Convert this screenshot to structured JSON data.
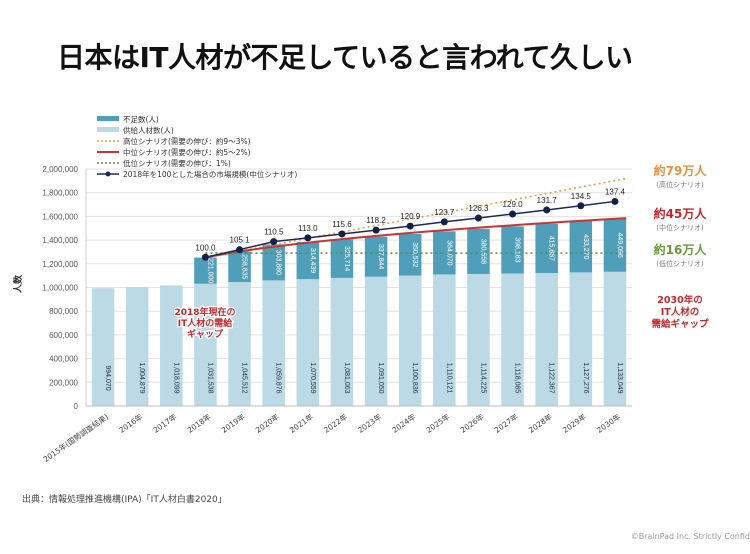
{
  "slide": {
    "title": "日本はIT人材が不足していると言われて久しい",
    "source": "出典：情報処理推進機構(IPA)「IT人材白書2020」",
    "copyright": "©BrainPad Inc. Strictly Confid"
  },
  "chart_data": {
    "type": "bar",
    "stacked": true,
    "ylabel": "人数",
    "ylim": [
      0,
      2000000
    ],
    "yticks": [
      "0",
      "200,000",
      "400,000",
      "600,000",
      "800,000",
      "1,000,000",
      "1,200,000",
      "1,400,000",
      "1,600,000",
      "1,800,000",
      "2,000,000"
    ],
    "categories": [
      "2015年(国勢調査結果)",
      "2016年",
      "2017年",
      "2018年",
      "2019年",
      "2020年",
      "2021年",
      "2022年",
      "2023年",
      "2024年",
      "2025年",
      "2026年",
      "2027年",
      "2028年",
      "2029年",
      "2030年"
    ],
    "legend": [
      {
        "name": "不足数(人)",
        "color": "#4f9fba"
      },
      {
        "name": "供給人材数(人)",
        "color": "#bcd9e6"
      },
      {
        "name": "高位シナリオ(需要の伸び：約9～3%)",
        "color": "#e8a03a"
      },
      {
        "name": "中位シナリオ(需要の伸び：約5～2%)",
        "color": "#cc3333"
      },
      {
        "name": "低位シナリオ(需要の伸び：1%)",
        "color": "#5a8a3a"
      },
      {
        "name": "2018年を100とした場合の市場規模(中位シナリオ)",
        "color": "#1a2a5a"
      }
    ],
    "series": [
      {
        "name": "供給人材数(人)",
        "values": [
          994070,
          1004879,
          1018099,
          1031538,
          1045512,
          1059876,
          1070559,
          1081063,
          1091050,
          1100836,
          1110121,
          1114225,
          1118085,
          1122367,
          1127276,
          1133049
        ],
        "labels": [
          "994,070",
          "1,004,879",
          "1,018,099",
          "1,031,538",
          "1,045,512",
          "1,059,876",
          "1,070,559",
          "1,081,063",
          "1,091,050",
          "1,100,836",
          "1,110,121",
          "1,114,225",
          "1,118,085",
          "1,122,367",
          "1,127,276",
          "1,133,049"
        ]
      },
      {
        "name": "不足数(人)",
        "values": [
          null,
          null,
          null,
          221000,
          258835,
          303880,
          314439,
          325714,
          337844,
          350532,
          364070,
          380558,
          398183,
          415887,
          433270,
          449096
        ],
        "labels": [
          "",
          "",
          "",
          "221,000",
          "258,835",
          "303,880",
          "314,439",
          "325,714",
          "337,844",
          "350,532",
          "364,070",
          "380,558",
          "398,183",
          "415,887",
          "433,270",
          "449,096"
        ]
      },
      {
        "name": "2018年を100とした場合の市場規模(中位シナリオ)",
        "values": [
          null,
          null,
          null,
          100.0,
          105.1,
          110.5,
          113.0,
          115.6,
          118.2,
          120.9,
          123.7,
          126.3,
          129.0,
          131.7,
          134.5,
          137.4
        ],
        "labels": [
          "",
          "",
          "",
          "100.0",
          "105.1",
          "110.5",
          "113.0",
          "115.6",
          "118.2",
          "120.9",
          "123.7",
          "126.3",
          "129.0",
          "131.7",
          "134.5",
          "137.4"
        ]
      }
    ],
    "annotations": {
      "gap_2018": [
        "2018年現在の",
        "IT人材の需給",
        "ギャップ"
      ],
      "gap_2030": [
        "2030年の",
        "IT人材の",
        "需給ギャップ"
      ],
      "high": {
        "value": "約79万人",
        "sub": "(高位シナリオ)",
        "color": "#e8903a"
      },
      "mid": {
        "value": "約45万人",
        "sub": "(中位シナリオ)",
        "color": "#c0282e"
      },
      "low": {
        "value": "約16万人",
        "sub": "(低位シナリオ)",
        "color": "#6a9a3a"
      }
    }
  }
}
